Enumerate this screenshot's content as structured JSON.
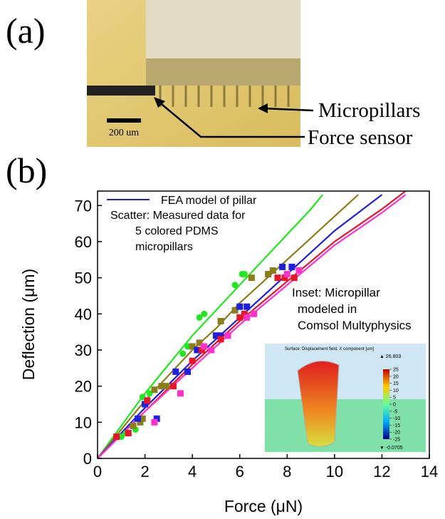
{
  "panel_a": {
    "label": "(a)",
    "annotations": [
      "Micropillars",
      "Force sensor"
    ],
    "scale_bar": "200 um"
  },
  "chart_data": {
    "type": "line",
    "panel_label": "(b)",
    "xlabel": "Force (μN)",
    "ylabel": "Deflection (μm)",
    "xlim": [
      0,
      14
    ],
    "ylim": [
      0,
      74
    ],
    "xticks": [
      0,
      2,
      4,
      6,
      8,
      10,
      12,
      14
    ],
    "yticks": [
      0,
      10,
      20,
      30,
      40,
      50,
      60,
      70
    ],
    "legend_lines": [
      "Scatter: Measured data for",
      "5 colored PDMS",
      "micropillars"
    ],
    "series": [
      {
        "kind": "line",
        "color": "#22e622",
        "x": [
          0,
          1,
          2,
          3,
          4,
          5,
          6,
          7,
          8,
          9,
          9.5
        ],
        "values": [
          0,
          9,
          18,
          26,
          34,
          41,
          48,
          55,
          62,
          69,
          73
        ]
      },
      {
        "kind": "line",
        "color": "#8b7d1a",
        "x": [
          0,
          1,
          2,
          3,
          4,
          5,
          6,
          7,
          8,
          9,
          10,
          11
        ],
        "values": [
          0,
          8,
          16,
          23,
          30,
          36,
          43,
          49,
          55,
          61,
          67,
          73
        ]
      },
      {
        "kind": "line",
        "name": "FEA model of pillar",
        "color": "#1f1fe0",
        "x": [
          0,
          2,
          4,
          6,
          8,
          10,
          12
        ],
        "values": [
          0,
          14,
          27,
          39,
          51,
          63,
          73
        ]
      },
      {
        "kind": "line",
        "color": "#e6162a",
        "x": [
          0,
          2,
          4,
          6,
          8,
          10,
          12,
          13
        ],
        "values": [
          0,
          13,
          26,
          38,
          49,
          60,
          69,
          74
        ]
      },
      {
        "kind": "line",
        "color": "#ff33cc",
        "x": [
          0,
          2,
          4,
          6,
          8,
          10,
          12,
          13
        ],
        "values": [
          0,
          13,
          25,
          37,
          48,
          59,
          68,
          73
        ]
      },
      {
        "kind": "scatter",
        "marker": "circle",
        "color": "#22e622",
        "x": [
          1.0,
          1.2,
          1.6,
          1.9,
          2.2,
          3.6,
          3.8,
          4.3,
          4.5,
          5.8,
          6.1,
          6.2
        ],
        "values": [
          6,
          7,
          8,
          17,
          18,
          29,
          31,
          39,
          40,
          48,
          51,
          51
        ]
      },
      {
        "kind": "scatter",
        "marker": "square",
        "color": "#8b7d1a",
        "x": [
          1.5,
          1.8,
          1.9,
          2.4,
          2.7,
          2.9,
          4.0,
          4.3,
          5.2,
          5.8,
          6.5,
          7.2,
          7.4
        ],
        "values": [
          9,
          10,
          11,
          19,
          20,
          20,
          31,
          32,
          38,
          41,
          50,
          51,
          52
        ]
      },
      {
        "kind": "scatter",
        "marker": "square",
        "color": "#1f1fe0",
        "x": [
          1.7,
          2.0,
          2.5,
          3.3,
          3.8,
          4.2,
          5.0,
          5.2,
          6.0,
          6.3,
          7.8,
          8.2
        ],
        "values": [
          11,
          15,
          11,
          24,
          24,
          30,
          34,
          34,
          42,
          42,
          53,
          53
        ]
      },
      {
        "kind": "scatter",
        "marker": "square",
        "color": "#e6162a",
        "x": [
          0.8,
          1.3,
          2.1,
          3.2,
          4.0,
          4.4,
          5.2,
          6.0,
          6.2,
          7.6,
          7.9,
          8.3
        ],
        "values": [
          6,
          7,
          16,
          20,
          27,
          30,
          33,
          39,
          40,
          50,
          50,
          50
        ]
      },
      {
        "kind": "scatter",
        "marker": "square",
        "color": "#ff33cc",
        "x": [
          2.4,
          3.5,
          4.5,
          4.8,
          5.5,
          6.3,
          6.6,
          8.0,
          8.5
        ],
        "values": [
          10,
          18,
          31,
          30,
          34,
          39,
          40,
          51,
          52
        ]
      }
    ],
    "inset": {
      "caption": [
        "Inset: Micropillar",
        "modeled in",
        "Comsol Multyphysics"
      ],
      "title": "Surface: Displacement field, X component [um]",
      "max_label": "▲ 26.803",
      "min_label": "▼ -0.0705",
      "colorbar_lim": [
        -25,
        25
      ],
      "colorbar_ticks": [
        25,
        20,
        15,
        10,
        5,
        0,
        -5,
        -10,
        -15,
        -20,
        -25
      ]
    }
  }
}
